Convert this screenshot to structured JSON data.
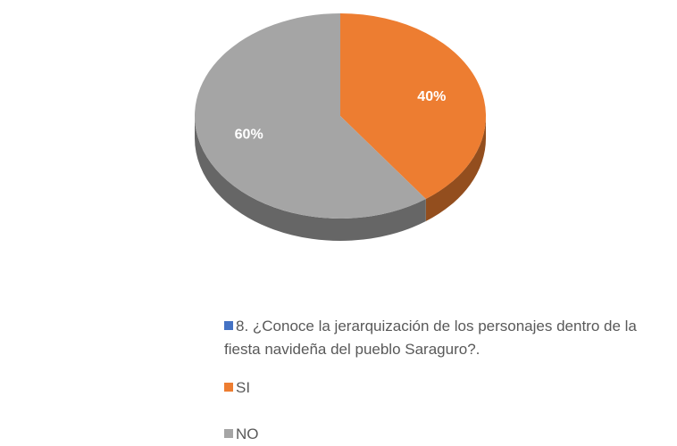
{
  "chart_data": {
    "type": "pie",
    "series_name": "8. ¿Conoce la jerarquización de los personajes dentro de la fiesta navideña del pueblo Saraguro?.",
    "series_color": "#4472c4",
    "categories": [
      "SI",
      "NO"
    ],
    "values": [
      40,
      60
    ],
    "value_labels": [
      "40%",
      "60%"
    ],
    "colors": [
      "#ed7d31",
      "#a5a5a5"
    ]
  }
}
